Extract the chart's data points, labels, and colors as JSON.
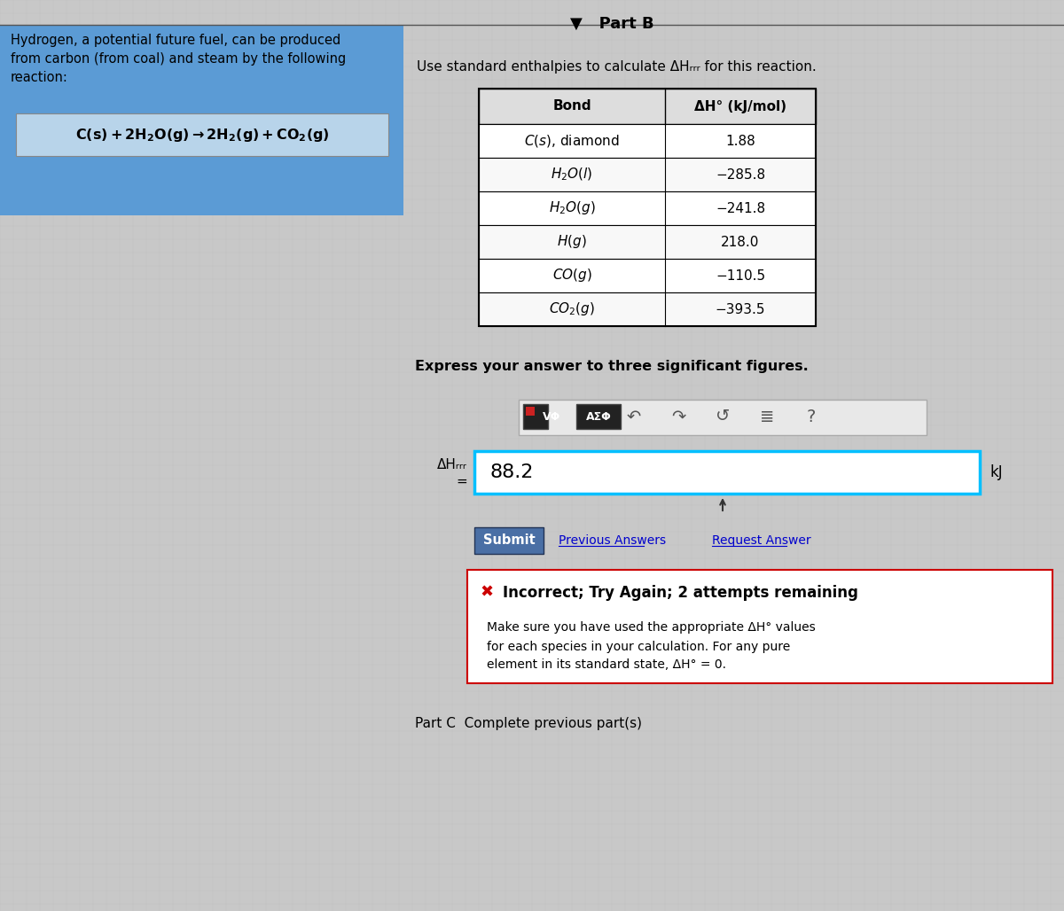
{
  "bg_color": "#c8c8c8",
  "left_panel_bg": "#5b9bd5",
  "part_b_label": "Part B",
  "left_title": "Hydrogen, a potential future fuel, can be produced\nfrom carbon (from coal) and steam by the following\nreaction:",
  "reaction": "C(s) + 2H₂O(g) → 2H₂(g) + CO₂(g)",
  "instruction": "Use standard enthalpies to calculate ΔHᵣᵣᵣ for this reaction.",
  "table_header_bond": "Bond",
  "table_header_dh": "ΔH° (kJ/mol)",
  "row_labels_plain": [
    "C(s), diamond",
    "H₂O(l)",
    "H₂O(g)",
    "H(g)",
    "CO(g)",
    "CO₂(g)"
  ],
  "row_values": [
    "1.88",
    "−285.8",
    "−241.8",
    "218.0",
    "−110.5",
    "−393.5"
  ],
  "express_label": "Express your answer to three significant figures.",
  "answer_value": "88.2",
  "unit_label": "kJ",
  "submit_label": "Submit",
  "prev_answers_label": "Previous Answers",
  "request_answer_label": "Request Answer",
  "incorrect_label": "Incorrect; Try Again; 2 attempts remaining",
  "hint_line1": "Make sure you have used the appropriate ΔH° values",
  "hint_line2": "for each species in your calculation. For any pure",
  "hint_line3": "element in its standard state, ΔH° = 0.",
  "part_c_label": "Part C  Complete previous part(s)",
  "answer_box_border": "#00bfff",
  "table_border": "#000000",
  "submit_bg": "#4a6fa5",
  "submit_text_color": "#ffffff",
  "incorrect_x_color": "#cc0000",
  "incorrect_box_border": "#cc0000"
}
